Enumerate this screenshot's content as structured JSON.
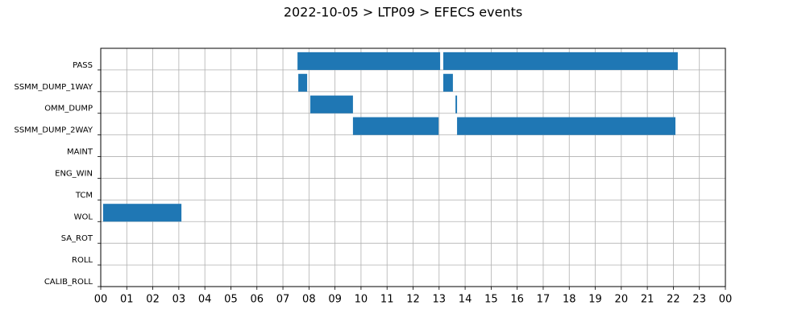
{
  "chart_data": {
    "type": "gantt",
    "title": "2022-10-05 > LTP09 > EFECS events",
    "categories": [
      "PASS",
      "SSMM_DUMP_1WAY",
      "OMM_DUMP",
      "SSMM_DUMP_2WAY",
      "MAINT",
      "ENG_WIN",
      "TCM",
      "WOL",
      "SA_ROT",
      "ROLL",
      "CALIB_ROLL"
    ],
    "intervals": [
      [
        [
          7.56,
          13.04
        ],
        [
          13.16,
          22.17
        ]
      ],
      [
        [
          7.59,
          7.93
        ],
        [
          13.16,
          13.53
        ]
      ],
      [
        [
          8.05,
          9.69
        ],
        [
          13.63,
          13.69
        ]
      ],
      [
        [
          9.69,
          12.98
        ],
        [
          13.69,
          22.08
        ]
      ],
      [],
      [],
      [],
      [
        [
          0.09,
          3.1
        ]
      ],
      [],
      [],
      []
    ],
    "color": "#1f77b4",
    "xlim": [
      0,
      24
    ],
    "xticks": [
      {
        "value": 0,
        "label": "00"
      },
      {
        "value": 1,
        "label": "01"
      },
      {
        "value": 2,
        "label": "02"
      },
      {
        "value": 3,
        "label": "03"
      },
      {
        "value": 4,
        "label": "04"
      },
      {
        "value": 5,
        "label": "05"
      },
      {
        "value": 6,
        "label": "06"
      },
      {
        "value": 7,
        "label": "07"
      },
      {
        "value": 8,
        "label": "08"
      },
      {
        "value": 9,
        "label": "09"
      },
      {
        "value": 10,
        "label": "10"
      },
      {
        "value": 11,
        "label": "11"
      },
      {
        "value": 12,
        "label": "12"
      },
      {
        "value": 13,
        "label": "13"
      },
      {
        "value": 14,
        "label": "14"
      },
      {
        "value": 15,
        "label": "15"
      },
      {
        "value": 16,
        "label": "16"
      },
      {
        "value": 17,
        "label": "17"
      },
      {
        "value": 18,
        "label": "18"
      },
      {
        "value": 19,
        "label": "19"
      },
      {
        "value": 20,
        "label": "20"
      },
      {
        "value": 21,
        "label": "21"
      },
      {
        "value": 22,
        "label": "22"
      },
      {
        "value": 23,
        "label": "23"
      },
      {
        "value": 24,
        "label": "00"
      }
    ],
    "grid": true
  }
}
